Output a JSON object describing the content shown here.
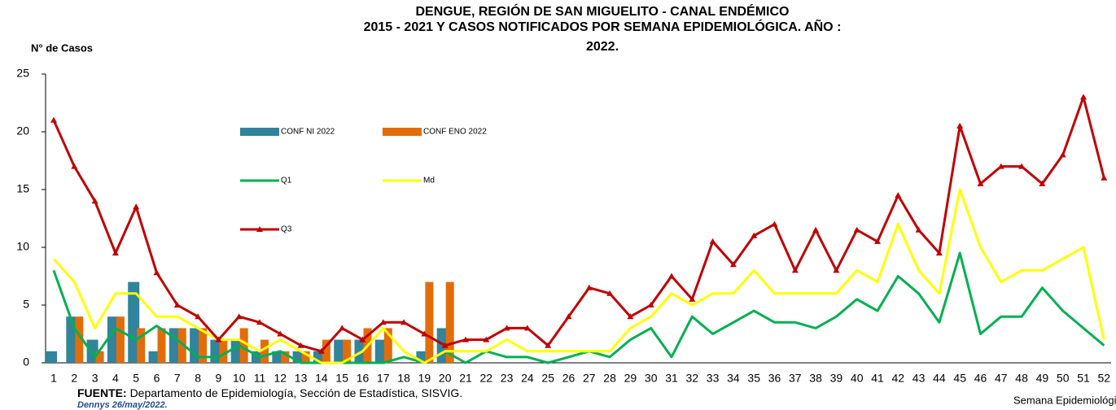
{
  "chart_data": {
    "type": "combo",
    "title": [
      "DENGUE, REGIÓN DE SAN MIGUELITO - CANAL ENDÉMICO",
      "2015 - 2021 Y  CASOS NOTIFICADOS POR SEMANA EPIDEMIOLÓGICA. AÑO :",
      "2022."
    ],
    "y_label": "N° de Casos",
    "x_label": "Semana Epidemiológica",
    "source_label": "FUENTE:",
    "source_text": "Departamento de Epidemiología, Sección de Estadística, SISVIG.",
    "author": "Dennys 26/may/2022.",
    "categories": [
      1,
      2,
      3,
      4,
      5,
      6,
      7,
      8,
      9,
      10,
      11,
      12,
      13,
      14,
      15,
      16,
      17,
      18,
      19,
      20,
      21,
      22,
      23,
      24,
      25,
      26,
      27,
      28,
      29,
      30,
      31,
      32,
      33,
      34,
      35,
      36,
      37,
      38,
      39,
      40,
      41,
      42,
      43,
      44,
      45,
      46,
      47,
      48,
      49,
      50,
      51,
      52
    ],
    "ylim": [
      0,
      25
    ],
    "yticks": [
      0,
      5,
      10,
      15,
      20,
      25
    ],
    "grid": false,
    "series": [
      {
        "name": "CONF NI 2022",
        "kind": "bar",
        "color": "#31849b",
        "values": [
          1,
          4,
          2,
          4,
          7,
          1,
          3,
          3,
          2,
          2,
          1,
          1,
          1,
          1,
          2,
          2,
          2,
          0,
          1,
          3,
          null,
          null,
          null,
          null,
          null,
          null,
          null,
          null,
          null,
          null,
          null,
          null,
          null,
          null,
          null,
          null,
          null,
          null,
          null,
          null,
          null,
          null,
          null,
          null,
          null,
          null,
          null,
          null,
          null,
          null,
          null,
          null
        ]
      },
      {
        "name": "CONF ENO 2022",
        "kind": "bar",
        "color": "#e36c0a",
        "values": [
          0,
          4,
          1,
          4,
          3,
          3,
          3,
          3,
          2,
          3,
          2,
          1,
          1,
          2,
          2,
          3,
          3,
          0,
          7,
          7,
          null,
          null,
          null,
          null,
          null,
          null,
          null,
          null,
          null,
          null,
          null,
          null,
          null,
          null,
          null,
          null,
          null,
          null,
          null,
          null,
          null,
          null,
          null,
          null,
          null,
          null,
          null,
          null,
          null,
          null,
          null,
          null
        ]
      },
      {
        "name": "Q1",
        "kind": "line",
        "color": "#00b050",
        "values": [
          8,
          3,
          0.5,
          3,
          2,
          3.2,
          2,
          0.5,
          0.5,
          1.5,
          0.5,
          1,
          0,
          0,
          0,
          0,
          0,
          0.5,
          0,
          1,
          0,
          1,
          0.5,
          0.5,
          0,
          0.5,
          1,
          0.5,
          2,
          3,
          0.5,
          4,
          2.5,
          3.5,
          4.5,
          3.5,
          3.5,
          3,
          4,
          5.5,
          4.5,
          7.5,
          6,
          3.5,
          9.5,
          2.5,
          4,
          4,
          6.5,
          4.5,
          3,
          1.5
        ]
      },
      {
        "name": "Md",
        "kind": "line",
        "color": "#ffff00",
        "values": [
          9,
          7,
          3,
          6,
          6,
          4,
          4,
          3,
          2,
          2,
          1,
          2,
          1,
          0,
          0,
          1,
          3,
          1,
          0,
          1,
          1,
          1,
          2,
          1,
          1,
          1,
          1,
          1,
          3,
          4,
          6,
          5,
          6,
          6,
          8,
          6,
          6,
          6,
          6,
          8,
          7,
          12,
          8,
          6,
          15,
          10,
          7,
          8,
          8,
          9,
          10,
          2
        ]
      },
      {
        "name": "Q3",
        "kind": "line",
        "marker": "triangle",
        "color": "#c00000",
        "values": [
          21,
          17,
          14,
          9.5,
          13.5,
          7.8,
          5,
          4,
          2,
          4,
          3.5,
          2.5,
          1.5,
          1,
          3,
          2,
          3.5,
          3.5,
          2.5,
          1.5,
          2,
          2,
          3,
          3,
          1.5,
          4,
          6.5,
          6,
          4,
          5,
          7.5,
          5.5,
          10.5,
          8.5,
          11,
          12,
          8,
          11.5,
          8,
          11.5,
          10.5,
          14.5,
          11.5,
          9.5,
          20.5,
          15.5,
          17,
          17,
          15.5,
          18,
          23,
          16
        ]
      }
    ]
  }
}
